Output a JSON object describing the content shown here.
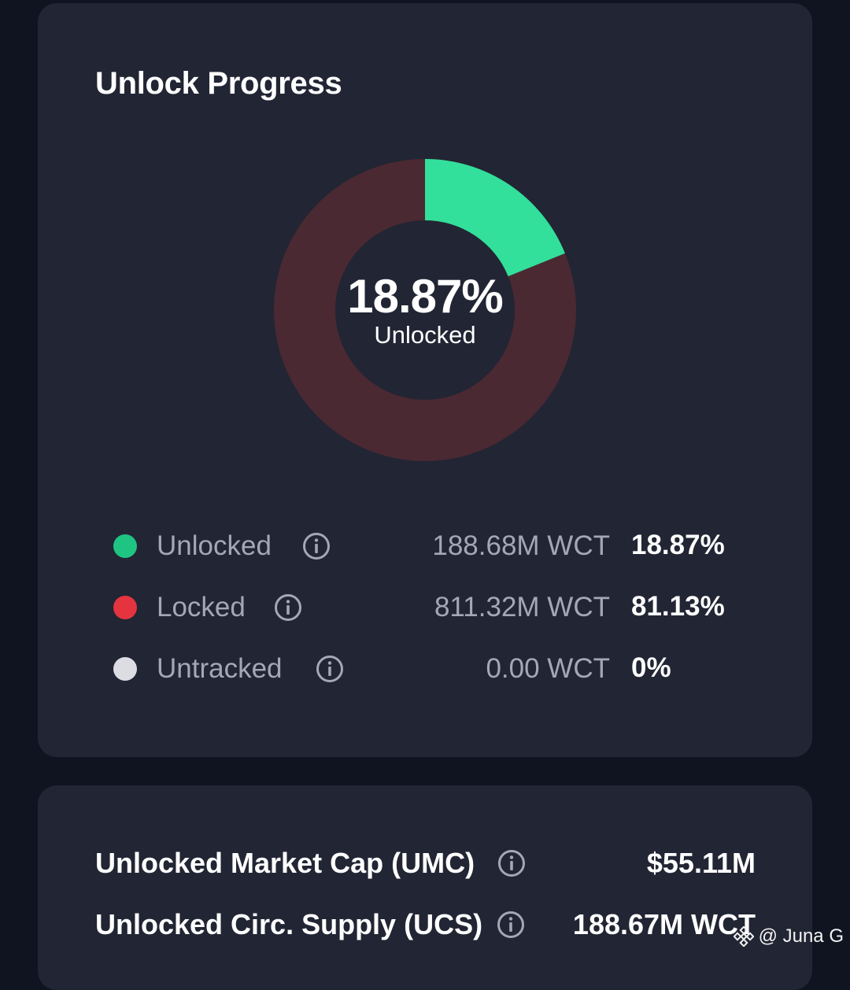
{
  "progress_card": {
    "title": "Unlock Progress",
    "center_percent": "18.87%",
    "center_label": "Unlocked",
    "unlocked_fraction": 0.1887,
    "colors": {
      "unlocked_arc": "#32df9b",
      "locked_arc": "#4a2932"
    },
    "legend": [
      {
        "label": "Unlocked",
        "amount": "188.68M WCT",
        "percent": "18.87%",
        "color": "#1fc483",
        "icon": "info-icon"
      },
      {
        "label": "Locked",
        "amount": "811.32M WCT",
        "percent": "81.13%",
        "color": "#e5343f",
        "icon": "info-icon"
      },
      {
        "label": "Untracked",
        "amount": "0.00 WCT",
        "percent": "0%",
        "color": "#dcdde3",
        "icon": "info-icon"
      }
    ]
  },
  "supply_card": {
    "rows": [
      {
        "label": "Unlocked Market Cap (UMC)",
        "value": "$55.11M",
        "icon": "info-icon"
      },
      {
        "label": "Unlocked Circ. Supply (UCS)",
        "value": "188.67M WCT",
        "icon": "info-icon"
      }
    ]
  },
  "watermark": {
    "text": "@ Juna G",
    "icon": "binance-logo-icon"
  }
}
